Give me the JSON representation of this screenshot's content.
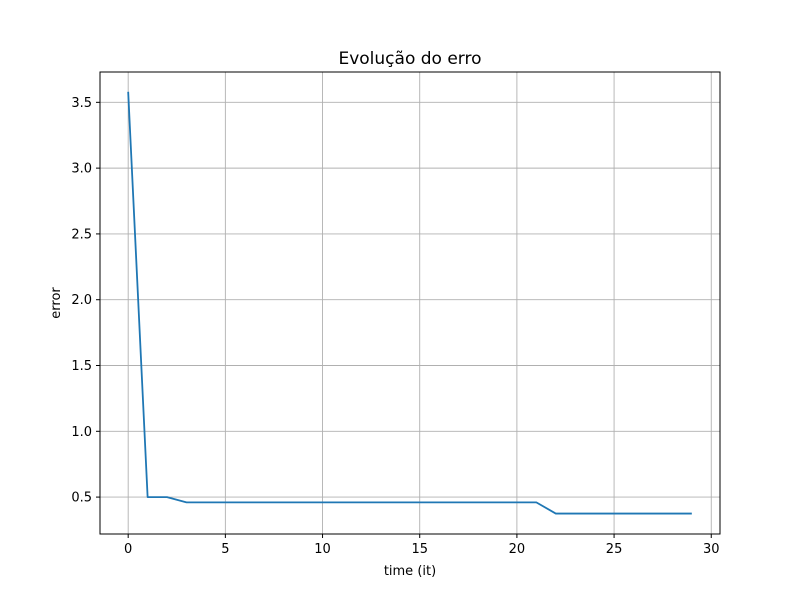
{
  "chart_data": {
    "type": "line",
    "title": "Evolução do erro",
    "xlabel": "time (it)",
    "ylabel": "error",
    "xlim": [
      -1.45,
      30.45
    ],
    "ylim": [
      0.2195,
      3.7305
    ],
    "xticks": [
      0,
      5,
      10,
      15,
      20,
      25,
      30
    ],
    "xtick_labels": [
      "0",
      "5",
      "10",
      "15",
      "20",
      "25",
      "30"
    ],
    "yticks": [
      0.5,
      1.0,
      1.5,
      2.0,
      2.5,
      3.0,
      3.5
    ],
    "ytick_labels": [
      "0.5",
      "1.0",
      "1.5",
      "2.0",
      "2.5",
      "3.0",
      "3.5"
    ],
    "grid": true,
    "series": [
      {
        "color": "#1f77b4",
        "x": [
          0,
          1,
          2,
          3,
          4,
          5,
          6,
          7,
          8,
          9,
          10,
          11,
          12,
          13,
          14,
          15,
          16,
          17,
          18,
          19,
          20,
          21,
          22,
          23,
          24,
          25,
          26,
          27,
          28,
          29
        ],
        "y": [
          3.58,
          0.5,
          0.5,
          0.46,
          0.46,
          0.46,
          0.46,
          0.46,
          0.46,
          0.46,
          0.46,
          0.46,
          0.46,
          0.46,
          0.46,
          0.46,
          0.46,
          0.46,
          0.46,
          0.46,
          0.46,
          0.46,
          0.375,
          0.375,
          0.375,
          0.375,
          0.375,
          0.375,
          0.375,
          0.375
        ]
      }
    ]
  }
}
